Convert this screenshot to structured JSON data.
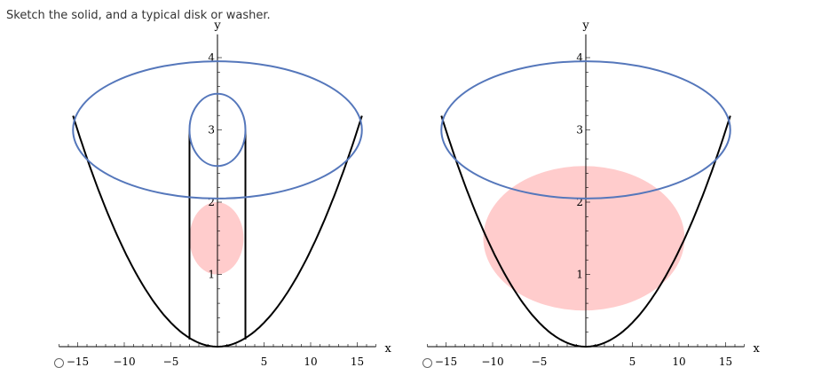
{
  "question": {
    "prompt": "Sketch the solid, and a typical disk or washer."
  },
  "colors": {
    "curve": "#000000",
    "ellipse": "#5577bb",
    "region": "#ffcccc"
  },
  "chart_data": [
    {
      "type": "diagram",
      "option": "option-1",
      "xlabel": "x",
      "ylabel": "y",
      "xlim": [
        -17,
        17
      ],
      "ylim": [
        0,
        4.2
      ],
      "x_tick_labels": [
        -15,
        -10,
        -5,
        5,
        10,
        15
      ],
      "y_tick_labels": [
        1,
        2,
        3,
        4
      ],
      "parabola": {
        "a": 0.0133,
        "x_range": [
          -15.5,
          15.5
        ]
      },
      "top_ellipse": {
        "cx": 0,
        "cy": 3,
        "rx": 15.5,
        "ry": 0.95
      },
      "inner_ellipse": {
        "cx": 0,
        "cy": 3,
        "rx": 3,
        "ry": 0.5
      },
      "vertical_lines": [
        {
          "x": -3,
          "y_from": 0.1,
          "y_to": 3
        },
        {
          "x": 3,
          "y_from": 0.1,
          "y_to": 3
        }
      ],
      "disk": {
        "cx": -0.1,
        "cy": 1.5,
        "rx": 2.9,
        "ry": 0.5
      }
    },
    {
      "type": "diagram",
      "option": "option-2",
      "xlabel": "x",
      "ylabel": "y",
      "xlim": [
        -17,
        17
      ],
      "ylim": [
        0,
        4.2
      ],
      "x_tick_labels": [
        -15,
        -10,
        -5,
        5,
        10,
        15
      ],
      "y_tick_labels": [
        1,
        2,
        3,
        4
      ],
      "parabola": {
        "a": 0.0133,
        "x_range": [
          -15.5,
          15.5
        ]
      },
      "top_ellipse": {
        "cx": 0,
        "cy": 3,
        "rx": 15.5,
        "ry": 0.95
      },
      "disk": {
        "cx": -0.2,
        "cy": 1.5,
        "rx": 10.8,
        "ry": 1.0
      }
    }
  ]
}
